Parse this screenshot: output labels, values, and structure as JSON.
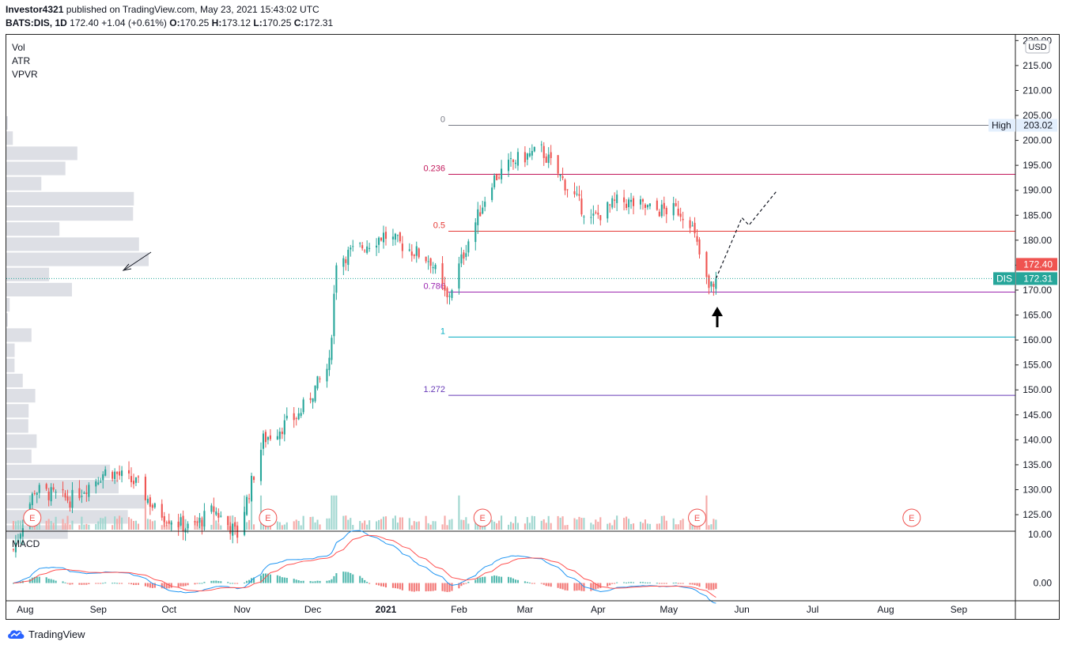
{
  "header": {
    "publisher": "Investor4321",
    "published_text": "published on TradingView.com, May 23, 2021 15:43:02 UTC",
    "symbol": "BATS:DIS, 1D",
    "last": "172.40",
    "change": "+1.04 (+0.61%)",
    "o_label": "O:",
    "o_val": "170.25",
    "h_label": "H:",
    "h_val": "173.12",
    "l_label": "L:",
    "l_val": "170.25",
    "c_label": "C:",
    "c_val": "172.31"
  },
  "indicators": [
    "Vol",
    "ATR",
    "VPVR"
  ],
  "macd_label": "MACD",
  "footer": {
    "brand": "TradingView"
  },
  "colors": {
    "up": "#26a69a",
    "down": "#ef5350",
    "vol_up": "#9fd6cf",
    "vol_down": "#f5a9a7"
  },
  "chart_data": {
    "type": "candlestick",
    "title": "BATS:DIS, 1D",
    "currency": "USD",
    "x_ticks": [
      "Aug",
      "Sep",
      "Oct",
      "Nov",
      "Dec",
      "2021",
      "Feb",
      "Mar",
      "Apr",
      "May",
      "Jun",
      "Jul",
      "Aug",
      "Sep"
    ],
    "y_ticks": [
      "220.00",
      "215.00",
      "210.00",
      "205.00",
      "200.00",
      "195.00",
      "190.00",
      "185.00",
      "180.00",
      "175.00",
      "170.00",
      "165.00",
      "160.00",
      "155.00",
      "150.00",
      "145.00",
      "140.00",
      "135.00",
      "130.00",
      "125.00"
    ],
    "ylim": [
      122,
      221
    ],
    "macd_ticks": [
      "10.00",
      "0.00"
    ],
    "price_labels": {
      "high_label": "High",
      "high_value": "203.02",
      "last_value": "172.40",
      "symbol_tag": "DIS",
      "symbol_value": "172.31"
    },
    "fibonacci": [
      {
        "level": "0",
        "price": 203.02,
        "color": "#787b86"
      },
      {
        "level": "0.236",
        "price": 193.2,
        "color": "#c2185b"
      },
      {
        "level": "0.5",
        "price": 181.8,
        "color": "#e53935"
      },
      {
        "level": "0.786",
        "price": 169.6,
        "color": "#9c27b0"
      },
      {
        "level": "1",
        "price": 160.6,
        "color": "#00acc1"
      },
      {
        "level": "1.272",
        "price": 148.9,
        "color": "#673ab7"
      }
    ],
    "earnings_markers": [
      "E",
      "E",
      "E",
      "E",
      "E"
    ],
    "ohlc_anchors": [
      {
        "date": "2020-07-27",
        "close": 118.0
      },
      {
        "date": "2020-08-05",
        "close": 130.0
      },
      {
        "date": "2020-08-20",
        "close": 128.0
      },
      {
        "date": "2020-09-05",
        "close": 134.0
      },
      {
        "date": "2020-09-18",
        "close": 131.0
      },
      {
        "date": "2020-09-25",
        "close": 126.0
      },
      {
        "date": "2020-10-10",
        "close": 122.0
      },
      {
        "date": "2020-10-20",
        "close": 126.0
      },
      {
        "date": "2020-10-30",
        "close": 121.0
      },
      {
        "date": "2020-11-10",
        "close": 140.0
      },
      {
        "date": "2020-11-25",
        "close": 145.0
      },
      {
        "date": "2020-12-08",
        "close": 155.0
      },
      {
        "date": "2020-12-11",
        "close": 176.0
      },
      {
        "date": "2020-12-31",
        "close": 181.0
      },
      {
        "date": "2021-01-20",
        "close": 176.0
      },
      {
        "date": "2021-01-27",
        "close": 168.0
      },
      {
        "date": "2021-02-05",
        "close": 180.0
      },
      {
        "date": "2021-02-15",
        "close": 192.0
      },
      {
        "date": "2021-02-25",
        "close": 196.0
      },
      {
        "date": "2021-03-08",
        "close": 198.0
      },
      {
        "date": "2021-03-20",
        "close": 190.0
      },
      {
        "date": "2021-03-29",
        "close": 184.0
      },
      {
        "date": "2021-04-10",
        "close": 188.0
      },
      {
        "date": "2021-04-25",
        "close": 186.0
      },
      {
        "date": "2021-05-05",
        "close": 186.0
      },
      {
        "date": "2021-05-10",
        "close": 184.0
      },
      {
        "date": "2021-05-18",
        "close": 170.0
      },
      {
        "date": "2021-05-21",
        "close": 172.31
      }
    ],
    "projection": [
      {
        "date": "2021-05-21",
        "price": 172.3
      },
      {
        "date": "2021-06-01",
        "price": 184.5
      },
      {
        "date": "2021-06-04",
        "price": 183.0
      },
      {
        "date": "2021-06-16",
        "price": 190.0
      }
    ]
  }
}
